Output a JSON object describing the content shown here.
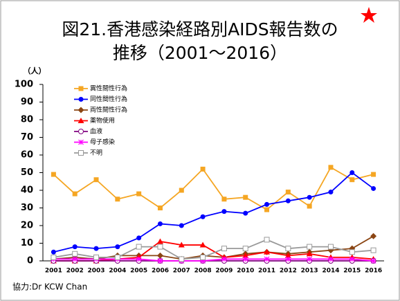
{
  "chart_data": {
    "type": "line",
    "title": [
      "図21.香港感染経路別AIDS報告数の",
      "推移（2001～2016）"
    ],
    "y_label": "（人）",
    "note": "協力:Dr KCW Chan",
    "categories": [
      "2001",
      "2002",
      "2003",
      "2004",
      "2005",
      "2006",
      "2007",
      "2008",
      "2009",
      "2010",
      "2011",
      "2012",
      "2013",
      "2014",
      "2015",
      "2016"
    ],
    "series": [
      {
        "name": "異性間性行為",
        "color": "#f5a623",
        "marker": "square",
        "values": [
          49,
          38,
          46,
          35,
          38,
          30,
          40,
          52,
          35,
          36,
          29,
          39,
          31,
          53,
          46,
          49
        ]
      },
      {
        "name": "同性間性行為",
        "color": "#0000ff",
        "marker": "circle",
        "values": [
          5,
          8,
          7,
          8,
          13,
          21,
          20,
          25,
          28,
          27,
          32,
          34,
          36,
          39,
          50,
          41
        ]
      },
      {
        "name": "両性間性行為",
        "color": "#8b4513",
        "marker": "diamond",
        "values": [
          1,
          2,
          1,
          3,
          3,
          3,
          1,
          3,
          2,
          4,
          5,
          4,
          5,
          6,
          7,
          14
        ]
      },
      {
        "name": "薬物使用",
        "color": "#ff0000",
        "marker": "triangle",
        "values": [
          0,
          0,
          0,
          1,
          2,
          11,
          9,
          9,
          2,
          3,
          5,
          3,
          4,
          2,
          2,
          1
        ]
      },
      {
        "name": "血液",
        "color": "#800080",
        "marker": "open-circle",
        "values": [
          0,
          0,
          0,
          0,
          0,
          0,
          0,
          0,
          0,
          0,
          0,
          0,
          0,
          0,
          0,
          0
        ]
      },
      {
        "name": "母子感染",
        "color": "#ff00ff",
        "marker": "cross",
        "values": [
          1,
          1,
          1,
          1,
          1,
          0,
          0,
          0,
          1,
          1,
          1,
          1,
          1,
          1,
          1,
          0
        ]
      },
      {
        "name": "不明",
        "color": "#999999",
        "marker": "open-square",
        "values": [
          2,
          4,
          2,
          2,
          8,
          8,
          1,
          2,
          7,
          7,
          12,
          7,
          8,
          8,
          5,
          6
        ]
      }
    ],
    "ylim": [
      0,
      100
    ],
    "yticks": [
      0,
      10,
      20,
      30,
      40,
      50,
      60,
      70,
      80,
      90,
      100
    ],
    "grid": false,
    "legend": "upper left"
  }
}
